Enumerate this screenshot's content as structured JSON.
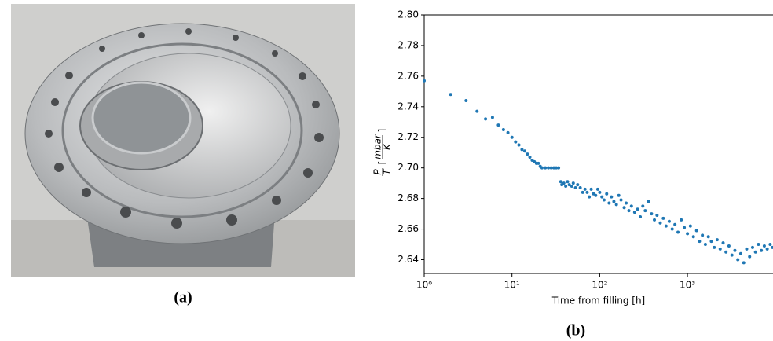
{
  "captions": {
    "a": "(a)",
    "b": "(b)"
  },
  "chart_data": {
    "type": "scatter",
    "xlabel": "Time from filling [h]",
    "ylabel": {
      "left_num": "P",
      "left_den": "T",
      "open": "[",
      "unit_num": "mbar",
      "unit_den": "K",
      "close": "]"
    },
    "log_x": true,
    "xlim": [
      1,
      9440
    ],
    "ylim": [
      2.631,
      2.8
    ],
    "xticks": [
      {
        "value": 1,
        "label": "10⁰"
      },
      {
        "value": 10,
        "label": "10¹"
      },
      {
        "value": 100,
        "label": "10²"
      },
      {
        "value": 1000,
        "label": "10³"
      }
    ],
    "yticks": [
      2.64,
      2.66,
      2.68,
      {
        "value": 2.7,
        "label": "2.70"
      },
      2.72,
      2.74,
      2.76,
      2.78,
      {
        "value": 2.8,
        "label": "2.80"
      }
    ],
    "color": "#1f77b4",
    "x": [
      1,
      2,
      3,
      4,
      5,
      6,
      7,
      8,
      9,
      10,
      11,
      12,
      13,
      14,
      15,
      16,
      17,
      18,
      19,
      20,
      21,
      22,
      24,
      26,
      28,
      30,
      32,
      34,
      36,
      37,
      39,
      41,
      43,
      45,
      48,
      50,
      53,
      56,
      60,
      64,
      68,
      72,
      76,
      80,
      85,
      90,
      95,
      100,
      106,
      112,
      120,
      128,
      136,
      145,
      155,
      165,
      175,
      190,
      200,
      215,
      230,
      250,
      270,
      290,
      310,
      330,
      360,
      390,
      420,
      450,
      490,
      530,
      570,
      620,
      670,
      720,
      780,
      850,
      920,
      1000,
      1080,
      1170,
      1270,
      1370,
      1480,
      1600,
      1730,
      1870,
      2020,
      2180,
      2360,
      2550,
      2750,
      2970,
      3210,
      3470,
      3750,
      4050,
      4380,
      4730,
      5110,
      5520,
      5960,
      6440,
      6950,
      7510,
      8110,
      8760,
      9300
    ],
    "values": [
      2.757,
      2.748,
      2.744,
      2.737,
      2.732,
      2.733,
      2.728,
      2.725,
      2.723,
      2.72,
      2.717,
      2.715,
      2.712,
      2.711,
      2.709,
      2.707,
      2.705,
      2.704,
      2.703,
      2.703,
      2.701,
      2.7,
      2.7,
      2.7,
      2.7,
      2.7,
      2.7,
      2.7,
      2.691,
      2.689,
      2.69,
      2.688,
      2.691,
      2.689,
      2.688,
      2.69,
      2.687,
      2.689,
      2.687,
      2.684,
      2.686,
      2.684,
      2.681,
      2.686,
      2.683,
      2.682,
      2.686,
      2.684,
      2.681,
      2.679,
      2.683,
      2.677,
      2.681,
      2.678,
      2.676,
      2.682,
      2.679,
      2.674,
      2.677,
      2.672,
      2.675,
      2.671,
      2.673,
      2.668,
      2.675,
      2.672,
      2.678,
      2.67,
      2.666,
      2.669,
      2.664,
      2.667,
      2.662,
      2.665,
      2.66,
      2.663,
      2.658,
      2.666,
      2.661,
      2.657,
      2.662,
      2.655,
      2.659,
      2.652,
      2.656,
      2.65,
      2.655,
      2.652,
      2.648,
      2.653,
      2.647,
      2.651,
      2.645,
      2.649,
      2.643,
      2.646,
      2.64,
      2.644,
      2.638,
      2.647,
      2.642,
      2.648,
      2.645,
      2.65,
      2.646,
      2.649,
      2.647,
      2.65,
      2.648
    ]
  }
}
